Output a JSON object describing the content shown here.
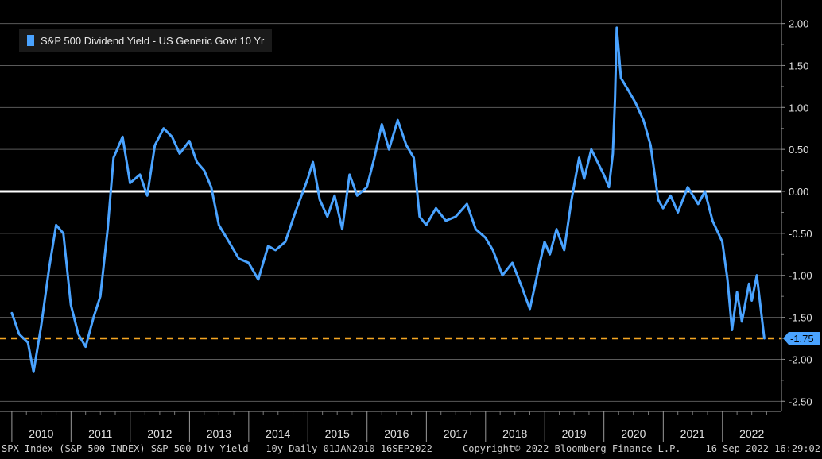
{
  "chart_data": {
    "type": "line",
    "legend": {
      "position": "top-left"
    },
    "series": [
      {
        "name": "S&P 500 Dividend Yield - US Generic Govt 10 Yr",
        "color": "#4aa3ff",
        "x": [
          "2010-01-01",
          "2010-02-15",
          "2010-04-10",
          "2010-05-15",
          "2010-07-01",
          "2010-08-20",
          "2010-10-01",
          "2010-11-15",
          "2010-12-31",
          "2011-02-15",
          "2011-04-01",
          "2011-05-20",
          "2011-07-01",
          "2011-08-15",
          "2011-09-20",
          "2011-11-15",
          "2011-12-31",
          "2012-03-01",
          "2012-04-15",
          "2012-06-01",
          "2012-07-25",
          "2012-09-15",
          "2012-11-01",
          "2012-12-31",
          "2013-02-15",
          "2013-04-01",
          "2013-05-15",
          "2013-07-01",
          "2013-09-01",
          "2013-11-01",
          "2013-12-31",
          "2014-03-01",
          "2014-05-01",
          "2014-06-15",
          "2014-08-15",
          "2014-10-15",
          "2014-12-31",
          "2015-02-01",
          "2015-03-15",
          "2015-05-01",
          "2015-06-15",
          "2015-08-01",
          "2015-09-15",
          "2015-11-01",
          "2015-12-31",
          "2016-02-15",
          "2016-04-01",
          "2016-05-15",
          "2016-07-08",
          "2016-08-30",
          "2016-10-15",
          "2016-11-20",
          "2016-12-31",
          "2017-03-01",
          "2017-05-01",
          "2017-07-01",
          "2017-09-08",
          "2017-11-01",
          "2017-12-31",
          "2018-02-15",
          "2018-04-15",
          "2018-06-15",
          "2018-08-15",
          "2018-10-01",
          "2018-11-15",
          "2018-12-31",
          "2019-02-01",
          "2019-03-15",
          "2019-05-01",
          "2019-06-15",
          "2019-08-01",
          "2019-09-01",
          "2019-10-15",
          "2019-12-31",
          "2020-02-01",
          "2020-02-25",
          "2020-03-09",
          "2020-03-20",
          "2020-04-15",
          "2020-06-01",
          "2020-07-15",
          "2020-09-01",
          "2020-10-15",
          "2020-12-01",
          "2020-12-31",
          "2021-02-15",
          "2021-04-01",
          "2021-06-01",
          "2021-08-04",
          "2021-09-15",
          "2021-11-01",
          "2021-12-31",
          "2022-02-01",
          "2022-03-01",
          "2022-04-01",
          "2022-05-01",
          "2022-06-14",
          "2022-07-01",
          "2022-08-01",
          "2022-09-16"
        ],
        "y": [
          -1.45,
          -1.7,
          -1.8,
          -2.15,
          -1.6,
          -0.9,
          -0.4,
          -0.5,
          -1.35,
          -1.7,
          -1.85,
          -1.5,
          -1.25,
          -0.45,
          0.4,
          0.65,
          0.1,
          0.2,
          -0.05,
          0.55,
          0.75,
          0.65,
          0.45,
          0.6,
          0.35,
          0.25,
          0.05,
          -0.4,
          -0.6,
          -0.8,
          -0.85,
          -1.05,
          -0.65,
          -0.7,
          -0.6,
          -0.25,
          0.15,
          0.35,
          -0.1,
          -0.3,
          -0.05,
          -0.45,
          0.2,
          -0.05,
          0.05,
          0.4,
          0.8,
          0.5,
          0.85,
          0.55,
          0.4,
          -0.3,
          -0.4,
          -0.2,
          -0.35,
          -0.3,
          -0.15,
          -0.45,
          -0.55,
          -0.7,
          -1.0,
          -0.85,
          -1.15,
          -1.4,
          -1.0,
          -0.6,
          -0.75,
          -0.45,
          -0.7,
          -0.1,
          0.4,
          0.15,
          0.5,
          0.2,
          0.05,
          0.45,
          1.1,
          1.95,
          1.35,
          1.2,
          1.05,
          0.85,
          0.55,
          -0.1,
          -0.2,
          -0.05,
          -0.25,
          0.05,
          -0.15,
          0.0,
          -0.35,
          -0.6,
          -1.05,
          -1.65,
          -1.2,
          -1.55,
          -1.1,
          -1.3,
          -1.0,
          -1.75
        ]
      }
    ],
    "reference_lines": [
      {
        "y": 0.0,
        "color": "#ffffff"
      },
      {
        "y": -1.75,
        "color": "#f5a623",
        "last_value_label": "-1.75"
      }
    ],
    "ylim": [
      -2.62,
      2.28
    ],
    "yticks": [
      2.0,
      1.5,
      1.0,
      0.5,
      0.0,
      -0.5,
      -1.0,
      -1.5,
      -2.0,
      -2.5
    ],
    "ytick_labels": [
      "2.00",
      "1.50",
      "1.00",
      "0.50",
      "0.00",
      "-0.50",
      "-1.00",
      "-1.50",
      "-2.00",
      "-2.50"
    ],
    "xlim": [
      "2009-10-20",
      "2022-12-31"
    ],
    "x_tick_labels": [
      "2010",
      "2011",
      "2012",
      "2013",
      "2014",
      "2015",
      "2016",
      "2017",
      "2018",
      "2019",
      "2020",
      "2021",
      "2022"
    ],
    "grid": true,
    "footer": {
      "left": "SPX Index (S&P 500 INDEX) S&P 500 Div Yield - 10y  Daily 01JAN2010-16SEP2022",
      "center": "Copyright© 2022 Bloomberg Finance L.P.",
      "right": "16-Sep-2022 16:29:02"
    }
  }
}
